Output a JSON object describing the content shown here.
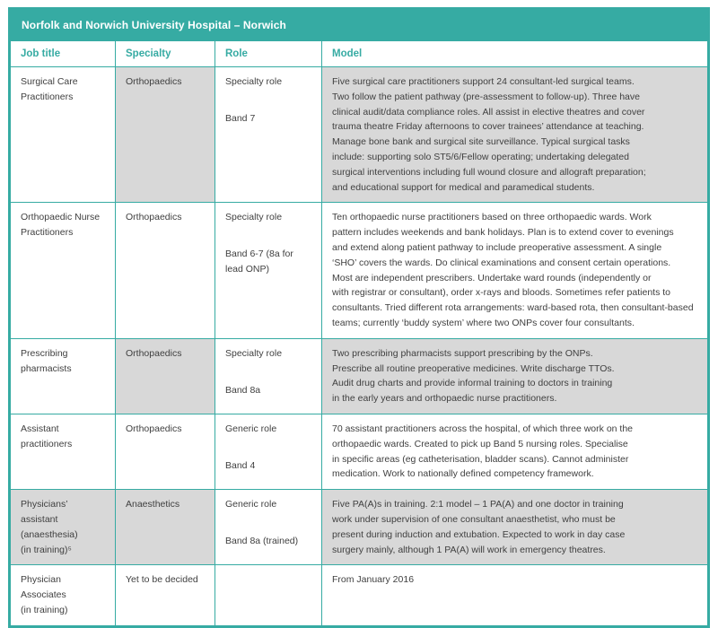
{
  "title_bar": {
    "text": "Norfolk and Norwich University Hospital – Norwich"
  },
  "colors": {
    "accent_teal": "#36aba3",
    "shaded_cell": "#d8d8d8",
    "title_text": "#ffffff"
  },
  "table": {
    "headers": [
      "Job title",
      "Specialty",
      "Role",
      "Model"
    ],
    "rows": [
      {
        "job_title": "Surgical Care\nPractitioners",
        "specialty": "Orthopaedics",
        "role_type": "Specialty role",
        "band": "Band 7",
        "model": "Five surgical care practitioners support 24 consultant-led surgical teams.\nTwo follow the patient pathway (pre-assessment to follow-up). Three have\nclinical audit/data compliance roles. All assist in elective theatres and cover\ntrauma theatre Friday afternoons to cover trainees’ attendance at teaching.\nManage bone bank and surgical site surveillance. Typical surgical tasks\ninclude: supporting solo ST5/6/Fellow operating; undertaking delegated\nsurgical interventions including full wound closure and allograft preparation;\nand educational support for medical and paramedical students."
      },
      {
        "job_title": "Orthopaedic Nurse\nPractitioners",
        "specialty": "Orthopaedics",
        "role_type": "Specialty role",
        "band": "Band 6-7 (8a for lead ONP)",
        "model": "Ten orthopaedic nurse practitioners based on three orthopaedic wards. Work\npattern includes weekends and bank holidays. Plan is to extend cover to evenings\nand extend along patient pathway to include preoperative assessment. A single\n‘SHO’ covers the wards. Do clinical examinations and consent certain operations.\nMost are independent prescribers. Undertake ward rounds (independently or\nwith registrar or consultant), order x-rays and bloods. Sometimes refer patients to\nconsultants. Tried different rota arrangements: ward-based rota, then consultant-based teams; currently ‘buddy system’ where two ONPs cover four consultants."
      },
      {
        "job_title": "Prescribing\npharmacists",
        "specialty": "Orthopaedics",
        "role_type": "Specialty role",
        "band": "Band 8a",
        "model": "Two prescribing pharmacists support prescribing by the ONPs.\nPrescribe all routine preoperative medicines. Write discharge TTOs.\nAudit drug charts and provide informal training to doctors in training\nin the early years and orthopaedic nurse practitioners."
      },
      {
        "job_title": "Assistant\npractitioners",
        "specialty": "Orthopaedics",
        "role_type": "Generic role",
        "band": "Band 4",
        "model": "70 assistant practitioners across the hospital, of which three work on the\northopaedic wards. Created to pick up Band 5 nursing roles. Specialise\nin specific areas (eg catheterisation, bladder scans). Cannot administer\nmedication. Work to nationally defined competency framework."
      },
      {
        "job_title": "Physicians’ assistant\n(anaesthesia)\n(in training)⁵",
        "specialty": "Anaesthetics",
        "role_type": "Generic role",
        "band": "Band 8a (trained)",
        "model": "Five PA(A)s in training. 2:1 model – 1 PA(A) and one doctor in training\nwork under supervision of one consultant anaesthetist, who must be\npresent during induction and extubation. Expected to work in day case\nsurgery mainly, although 1 PA(A) will work in emergency theatres."
      },
      {
        "job_title": "Physician Associates\n(in training)",
        "specialty": "Yet to be decided",
        "role_type": "",
        "band": "",
        "model": "From January 2016"
      }
    ]
  }
}
